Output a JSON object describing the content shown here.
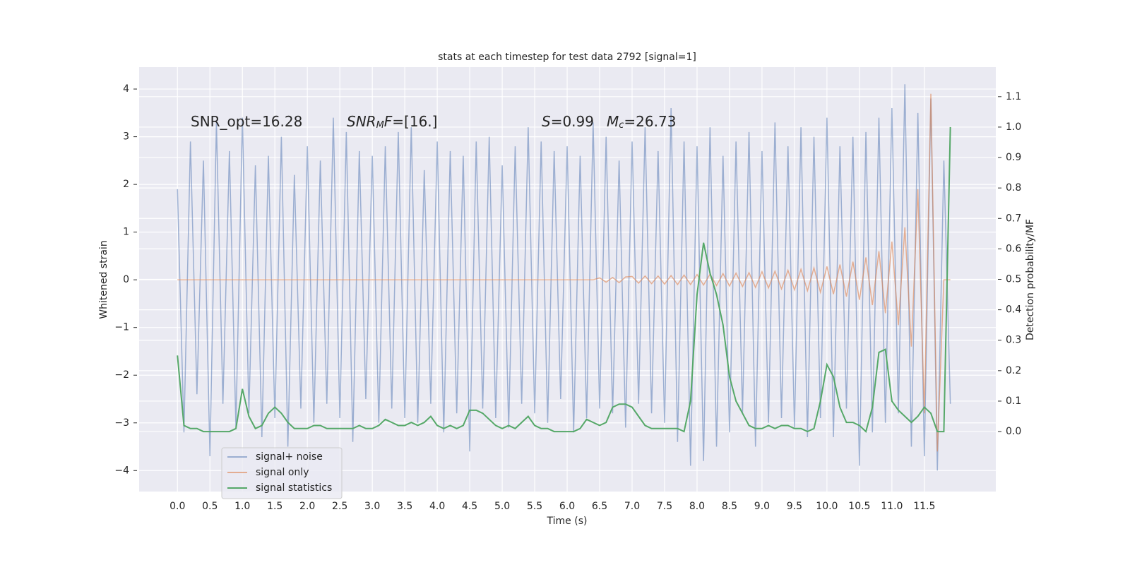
{
  "chart_data": {
    "type": "line",
    "title": "stats at each timestep for test data 2792 [signal=1]",
    "xlabel": "Time (s)",
    "ylabel": "Whitened strain",
    "y2label": "Detection probability/MF",
    "annotations": [
      {
        "parts": [
          "SNR_opt=16.28"
        ]
      },
      {
        "parts": [
          "SNR",
          "M",
          "F",
          "=[16.]"
        ]
      },
      {
        "parts": [
          "S",
          "=0.99"
        ]
      },
      {
        "parts": [
          "M",
          "c",
          "=26.73"
        ]
      }
    ],
    "grid": true,
    "legend": "lower left",
    "xlim": [
      -0.59,
      12.6
    ],
    "ylim": [
      -4.44,
      4.46
    ],
    "y2lim": [
      -0.197,
      1.197
    ],
    "xticks": [
      {
        "value": 0,
        "label": "0.0"
      },
      0.5,
      {
        "value": 1,
        "label": "1.0"
      },
      1.5,
      {
        "value": 2,
        "label": "2.0"
      },
      2.5,
      {
        "value": 3,
        "label": "3.0"
      },
      3.5,
      {
        "value": 4,
        "label": "4.0"
      },
      4.5,
      {
        "value": 5,
        "label": "5.0"
      },
      5.5,
      {
        "value": 6,
        "label": "6.0"
      },
      6.5,
      {
        "value": 7,
        "label": "7.0"
      },
      7.5,
      {
        "value": 8,
        "label": "8.0"
      },
      8.5,
      {
        "value": 9,
        "label": "9.0"
      },
      9.5,
      {
        "value": 10,
        "label": "10.0"
      },
      10.5,
      {
        "value": 11,
        "label": "11.0"
      },
      11.5
    ],
    "yticks": [
      {
        "value": -4,
        "label": "−4"
      },
      {
        "value": -3,
        "label": "−3"
      },
      {
        "value": -2,
        "label": "−2"
      },
      {
        "value": -1,
        "label": "−1"
      },
      0,
      1,
      2,
      3,
      4
    ],
    "y2ticks": [
      {
        "value": 0,
        "label": "0.0"
      },
      0.1,
      0.2,
      0.3,
      0.4,
      0.5,
      0.6,
      0.7,
      0.8,
      0.9,
      {
        "value": 1,
        "label": "1.0"
      },
      1.1
    ],
    "x": [
      0.0,
      0.1,
      0.2,
      0.3,
      0.4,
      0.5,
      0.6,
      0.7,
      0.8,
      0.9,
      1.0,
      1.1,
      1.2,
      1.3,
      1.4,
      1.5,
      1.6,
      1.7,
      1.8,
      1.9,
      2.0,
      2.1,
      2.2,
      2.3,
      2.4,
      2.5,
      2.6,
      2.7,
      2.8,
      2.9,
      3.0,
      3.1,
      3.2,
      3.3,
      3.4,
      3.5,
      3.6,
      3.7,
      3.8,
      3.9,
      4.0,
      4.1,
      4.2,
      4.3,
      4.4,
      4.5,
      4.6,
      4.7,
      4.8,
      4.9,
      5.0,
      5.1,
      5.2,
      5.3,
      5.4,
      5.5,
      5.6,
      5.7,
      5.8,
      5.9,
      6.0,
      6.1,
      6.2,
      6.3,
      6.4,
      6.5,
      6.6,
      6.7,
      6.8,
      6.9,
      7.0,
      7.1,
      7.2,
      7.3,
      7.4,
      7.5,
      7.6,
      7.7,
      7.8,
      7.9,
      8.0,
      8.1,
      8.2,
      8.3,
      8.4,
      8.5,
      8.6,
      8.7,
      8.8,
      8.9,
      9.0,
      9.1,
      9.2,
      9.3,
      9.4,
      9.5,
      9.6,
      9.7,
      9.8,
      9.9,
      10.0,
      10.1,
      10.2,
      10.3,
      10.4,
      10.5,
      10.6,
      10.7,
      10.8,
      10.9,
      11.0,
      11.1,
      11.2,
      11.3,
      11.4,
      11.5,
      11.6,
      11.7,
      11.8,
      11.9
    ],
    "series": [
      {
        "name": "signal+ noise",
        "color": "#4c72b0",
        "opacity": 0.5,
        "values": [
          1.9,
          -3.2,
          2.9,
          -2.4,
          2.5,
          -3.7,
          3.3,
          -2.6,
          2.7,
          -3.1,
          3.4,
          -2.8,
          2.4,
          -3.3,
          2.6,
          -2.9,
          3.0,
          -3.5,
          2.2,
          -2.7,
          2.8,
          -3.0,
          2.5,
          -2.6,
          3.4,
          -2.9,
          3.1,
          -3.4,
          2.7,
          -2.5,
          2.6,
          -3.0,
          2.8,
          -2.7,
          3.1,
          -2.9,
          3.2,
          -3.0,
          2.3,
          -2.6,
          2.9,
          -3.2,
          2.7,
          -2.8,
          2.6,
          -3.6,
          2.9,
          -2.7,
          3.0,
          -2.9,
          2.4,
          -3.1,
          2.8,
          -2.6,
          3.2,
          -2.8,
          2.9,
          -3.0,
          2.7,
          -2.5,
          2.8,
          -3.2,
          2.6,
          -2.9,
          3.3,
          -2.7,
          3.0,
          -2.8,
          2.5,
          -3.1,
          2.9,
          -2.6,
          3.2,
          -2.8,
          2.7,
          -3.0,
          3.6,
          -3.4,
          2.9,
          -3.9,
          2.8,
          -3.8,
          3.2,
          -3.5,
          2.6,
          -3.2,
          2.9,
          -2.8,
          3.1,
          -3.5,
          2.7,
          -3.0,
          3.3,
          -2.9,
          2.8,
          -3.1,
          3.2,
          -3.3,
          3.0,
          -2.9,
          3.4,
          -3.3,
          2.8,
          -2.7,
          3.0,
          -3.9,
          3.1,
          -3.2,
          3.4,
          -3.0,
          3.6,
          -2.8,
          4.1,
          -3.5,
          3.5,
          -3.7,
          3.8,
          -4.0,
          2.5,
          -2.6
        ]
      },
      {
        "name": "signal only",
        "color": "#dd8452",
        "opacity": 0.6,
        "values": [
          0,
          0,
          0,
          0,
          0,
          0,
          0,
          0,
          0,
          0,
          0,
          0,
          0,
          0,
          0,
          0,
          0,
          0,
          0,
          0,
          0,
          0,
          0,
          0,
          0,
          0,
          0,
          0,
          0,
          0,
          0,
          0,
          0,
          0,
          0,
          0,
          0,
          0,
          0,
          0,
          0,
          0,
          0,
          0,
          0,
          0,
          0,
          0,
          0,
          0,
          0,
          0,
          0,
          0,
          0,
          0,
          0,
          0,
          0,
          0,
          0,
          0,
          0,
          0,
          0,
          0.04,
          -0.05,
          0.05,
          -0.06,
          0.06,
          0.07,
          -0.07,
          0.08,
          -0.08,
          0.08,
          -0.09,
          0.09,
          -0.1,
          0.1,
          -0.1,
          0.11,
          -0.11,
          0.12,
          -0.12,
          0.13,
          -0.13,
          0.14,
          -0.14,
          0.15,
          -0.16,
          0.17,
          -0.17,
          0.18,
          -0.19,
          0.2,
          -0.21,
          0.22,
          -0.23,
          0.25,
          -0.26,
          0.28,
          -0.3,
          0.32,
          -0.35,
          0.38,
          -0.42,
          0.47,
          -0.53,
          0.6,
          -0.7,
          0.8,
          -0.95,
          1.1,
          -1.4,
          1.9,
          -2.8,
          3.9,
          -3.6,
          0,
          0
        ]
      },
      {
        "name": "signal statistics",
        "color": "#55a868",
        "opacity": 1,
        "axis": "y2",
        "values": [
          0.25,
          0.02,
          0.01,
          0.01,
          0.0,
          0.0,
          0.0,
          0.0,
          0.0,
          0.01,
          0.14,
          0.05,
          0.01,
          0.02,
          0.06,
          0.08,
          0.06,
          0.03,
          0.01,
          0.01,
          0.01,
          0.02,
          0.02,
          0.01,
          0.01,
          0.01,
          0.01,
          0.01,
          0.02,
          0.01,
          0.01,
          0.02,
          0.04,
          0.03,
          0.02,
          0.02,
          0.03,
          0.02,
          0.03,
          0.05,
          0.02,
          0.01,
          0.02,
          0.01,
          0.02,
          0.07,
          0.07,
          0.06,
          0.04,
          0.02,
          0.01,
          0.02,
          0.01,
          0.03,
          0.05,
          0.02,
          0.01,
          0.01,
          0.0,
          0.0,
          0.0,
          0.0,
          0.01,
          0.04,
          0.03,
          0.02,
          0.03,
          0.08,
          0.09,
          0.09,
          0.08,
          0.05,
          0.02,
          0.01,
          0.01,
          0.01,
          0.01,
          0.01,
          0.0,
          0.1,
          0.45,
          0.62,
          0.52,
          0.45,
          0.35,
          0.18,
          0.1,
          0.06,
          0.02,
          0.01,
          0.01,
          0.02,
          0.01,
          0.02,
          0.02,
          0.01,
          0.01,
          0.0,
          0.01,
          0.1,
          0.22,
          0.18,
          0.08,
          0.03,
          0.03,
          0.02,
          0.0,
          0.08,
          0.26,
          0.27,
          0.1,
          0.07,
          0.05,
          0.03,
          0.05,
          0.08,
          0.06,
          0.0,
          0.0,
          1.0
        ]
      }
    ]
  }
}
